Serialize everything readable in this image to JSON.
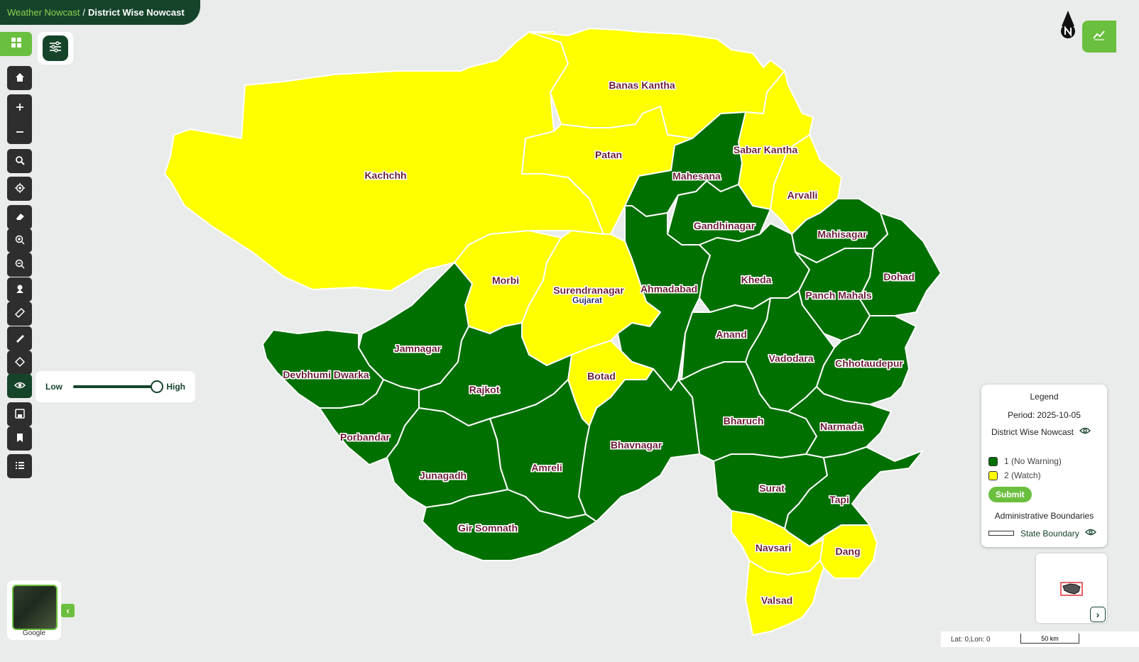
{
  "breadcrumb": {
    "parent": "Weather Nowcast",
    "separator": "/",
    "current": "District Wise Nowcast"
  },
  "map": {
    "state_label": "Gujarat",
    "districts": [
      {
        "name": "Kachchh",
        "category": 2
      },
      {
        "name": "Banas Kantha",
        "category": 2
      },
      {
        "name": "Patan",
        "category": 2
      },
      {
        "name": "Sabar Kantha",
        "category": 2
      },
      {
        "name": "Mahesana",
        "category": 1
      },
      {
        "name": "Arvalli",
        "category": 2
      },
      {
        "name": "Gandhinagar",
        "category": 1
      },
      {
        "name": "Mahisagar",
        "category": 1
      },
      {
        "name": "Dohad",
        "category": 1
      },
      {
        "name": "Morbi",
        "category": 2
      },
      {
        "name": "Surendranagar",
        "category": 2
      },
      {
        "name": "Ahmadabad",
        "category": 1
      },
      {
        "name": "Kheda",
        "category": 1
      },
      {
        "name": "Panch Mahals",
        "category": 1
      },
      {
        "name": "Jamnagar",
        "category": 1
      },
      {
        "name": "Anand",
        "category": 1
      },
      {
        "name": "Vadodara",
        "category": 1
      },
      {
        "name": "Chhotaudepur",
        "category": 1
      },
      {
        "name": "Devbhumi Dwarka",
        "category": 1
      },
      {
        "name": "Botad",
        "category": 2
      },
      {
        "name": "Rajkot",
        "category": 1
      },
      {
        "name": "Bharuch",
        "category": 1
      },
      {
        "name": "Narmada",
        "category": 1
      },
      {
        "name": "Porbandar",
        "category": 1
      },
      {
        "name": "Bhavnagar",
        "category": 1
      },
      {
        "name": "Amreli",
        "category": 1
      },
      {
        "name": "Junagadh",
        "category": 1
      },
      {
        "name": "Surat",
        "category": 1
      },
      {
        "name": "Tapi",
        "category": 1
      },
      {
        "name": "Gir Somnath",
        "category": 1
      },
      {
        "name": "Navsari",
        "category": 2
      },
      {
        "name": "Dang",
        "category": 2
      },
      {
        "name": "Valsad",
        "category": 2
      }
    ],
    "colors": {
      "category_1": "#007000",
      "category_2": "#ffff00",
      "boundary": "#1a1a6e",
      "label": "#6b0f2f"
    }
  },
  "toolbar": {
    "items": [
      "grid-icon",
      "filter-icon",
      "home-icon",
      "zoom-in-icon",
      "zoom-out-icon",
      "search-icon",
      "locate-icon",
      "eraser-icon",
      "zoom-in-area-icon",
      "zoom-out-area-icon",
      "pin-icon",
      "ruler-icon",
      "draw-icon",
      "shape-icon",
      "eye-icon",
      "save-icon",
      "bookmark-icon",
      "list-icon"
    ]
  },
  "opacity": {
    "low_label": "Low",
    "high_label": "High",
    "value": 1.0
  },
  "legend": {
    "title": "Legend",
    "period": "Period: 2025-10-05",
    "layer_name": "District Wise Nowcast",
    "items": [
      {
        "label": "1 (No Warning)",
        "color": "#007000"
      },
      {
        "label": "2 (Watch)",
        "color": "#ffff00"
      }
    ],
    "submit_label": "Submit",
    "boundaries_title": "Administrative Boundaries",
    "boundary_label": "State Boundary"
  },
  "status": {
    "coords": "Lat: 0,Lon: 0",
    "scale": "50 km"
  },
  "basemap": {
    "label": "Google"
  }
}
